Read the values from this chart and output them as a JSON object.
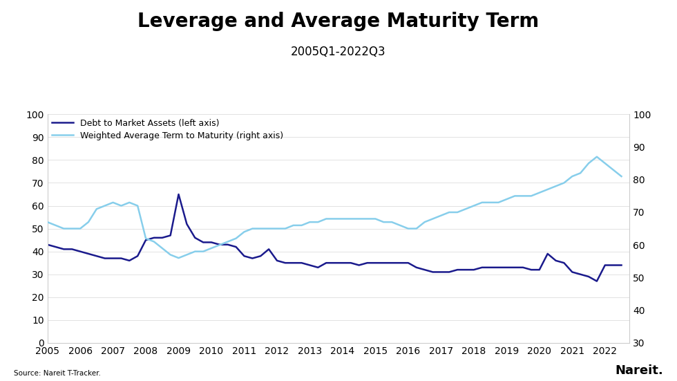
{
  "title": "Leverage and Average Maturity Term",
  "subtitle": "2005Q1-2022Q3",
  "source": "Source: Nareit T-Tracker.",
  "nareit_label": "Nareit.",
  "legend_debt": "Debt to Market Assets (left axis)",
  "legend_maturity": "Weighted Average Term to Maturity (right axis)",
  "debt_color": "#1a1a8c",
  "maturity_color": "#87CEEB",
  "left_ylim": [
    0,
    100
  ],
  "right_ylim": [
    30,
    100
  ],
  "left_yticks": [
    0,
    10,
    20,
    30,
    40,
    50,
    60,
    70,
    80,
    90,
    100
  ],
  "right_yticks": [
    30,
    40,
    50,
    60,
    70,
    80,
    90,
    100
  ],
  "debt_x": [
    2005.0,
    2005.25,
    2005.5,
    2005.75,
    2006.0,
    2006.25,
    2006.5,
    2006.75,
    2007.0,
    2007.25,
    2007.5,
    2007.75,
    2008.0,
    2008.25,
    2008.5,
    2008.75,
    2009.0,
    2009.25,
    2009.5,
    2009.75,
    2010.0,
    2010.25,
    2010.5,
    2010.75,
    2011.0,
    2011.25,
    2011.5,
    2011.75,
    2012.0,
    2012.25,
    2012.5,
    2012.75,
    2013.0,
    2013.25,
    2013.5,
    2013.75,
    2014.0,
    2014.25,
    2014.5,
    2014.75,
    2015.0,
    2015.25,
    2015.5,
    2015.75,
    2016.0,
    2016.25,
    2016.5,
    2016.75,
    2017.0,
    2017.25,
    2017.5,
    2017.75,
    2018.0,
    2018.25,
    2018.5,
    2018.75,
    2019.0,
    2019.25,
    2019.5,
    2019.75,
    2020.0,
    2020.25,
    2020.5,
    2020.75,
    2021.0,
    2021.25,
    2021.5,
    2021.75,
    2022.0,
    2022.25,
    2022.5
  ],
  "debt_y": [
    43,
    42,
    41,
    41,
    40,
    39,
    38,
    37,
    37,
    37,
    36,
    38,
    45,
    46,
    46,
    47,
    65,
    52,
    46,
    44,
    44,
    43,
    43,
    42,
    38,
    37,
    38,
    41,
    36,
    35,
    35,
    35,
    34,
    33,
    35,
    35,
    35,
    35,
    34,
    35,
    35,
    35,
    35,
    35,
    35,
    33,
    32,
    31,
    31,
    31,
    32,
    32,
    32,
    33,
    33,
    33,
    33,
    33,
    33,
    32,
    32,
    39,
    36,
    35,
    31,
    30,
    29,
    27,
    34,
    34,
    34
  ],
  "maturity_x": [
    2005.0,
    2005.25,
    2005.5,
    2005.75,
    2006.0,
    2006.25,
    2006.5,
    2006.75,
    2007.0,
    2007.25,
    2007.5,
    2007.75,
    2008.0,
    2008.25,
    2008.5,
    2008.75,
    2009.0,
    2009.25,
    2009.5,
    2009.75,
    2010.0,
    2010.25,
    2010.5,
    2010.75,
    2011.0,
    2011.25,
    2011.5,
    2011.75,
    2012.0,
    2012.25,
    2012.5,
    2012.75,
    2013.0,
    2013.25,
    2013.5,
    2013.75,
    2014.0,
    2014.25,
    2014.5,
    2014.75,
    2015.0,
    2015.25,
    2015.5,
    2015.75,
    2016.0,
    2016.25,
    2016.5,
    2016.75,
    2017.0,
    2017.25,
    2017.5,
    2017.75,
    2018.0,
    2018.25,
    2018.5,
    2018.75,
    2019.0,
    2019.25,
    2019.5,
    2019.75,
    2020.0,
    2020.25,
    2020.5,
    2020.75,
    2021.0,
    2021.25,
    2021.5,
    2021.75,
    2022.0,
    2022.25,
    2022.5
  ],
  "maturity_y": [
    67,
    66,
    65,
    65,
    65,
    67,
    71,
    72,
    73,
    72,
    73,
    72,
    62,
    61,
    59,
    57,
    56,
    57,
    58,
    58,
    59,
    60,
    61,
    62,
    64,
    65,
    65,
    65,
    65,
    65,
    66,
    66,
    67,
    67,
    68,
    68,
    68,
    68,
    68,
    68,
    68,
    67,
    67,
    66,
    65,
    65,
    67,
    68,
    69,
    70,
    70,
    71,
    72,
    73,
    73,
    73,
    74,
    75,
    75,
    75,
    76,
    77,
    78,
    79,
    81,
    82,
    85,
    87,
    85,
    83,
    81
  ],
  "background_color": "#ffffff",
  "title_fontsize": 20,
  "subtitle_fontsize": 12,
  "tick_fontsize": 10,
  "legend_fontsize": 9
}
